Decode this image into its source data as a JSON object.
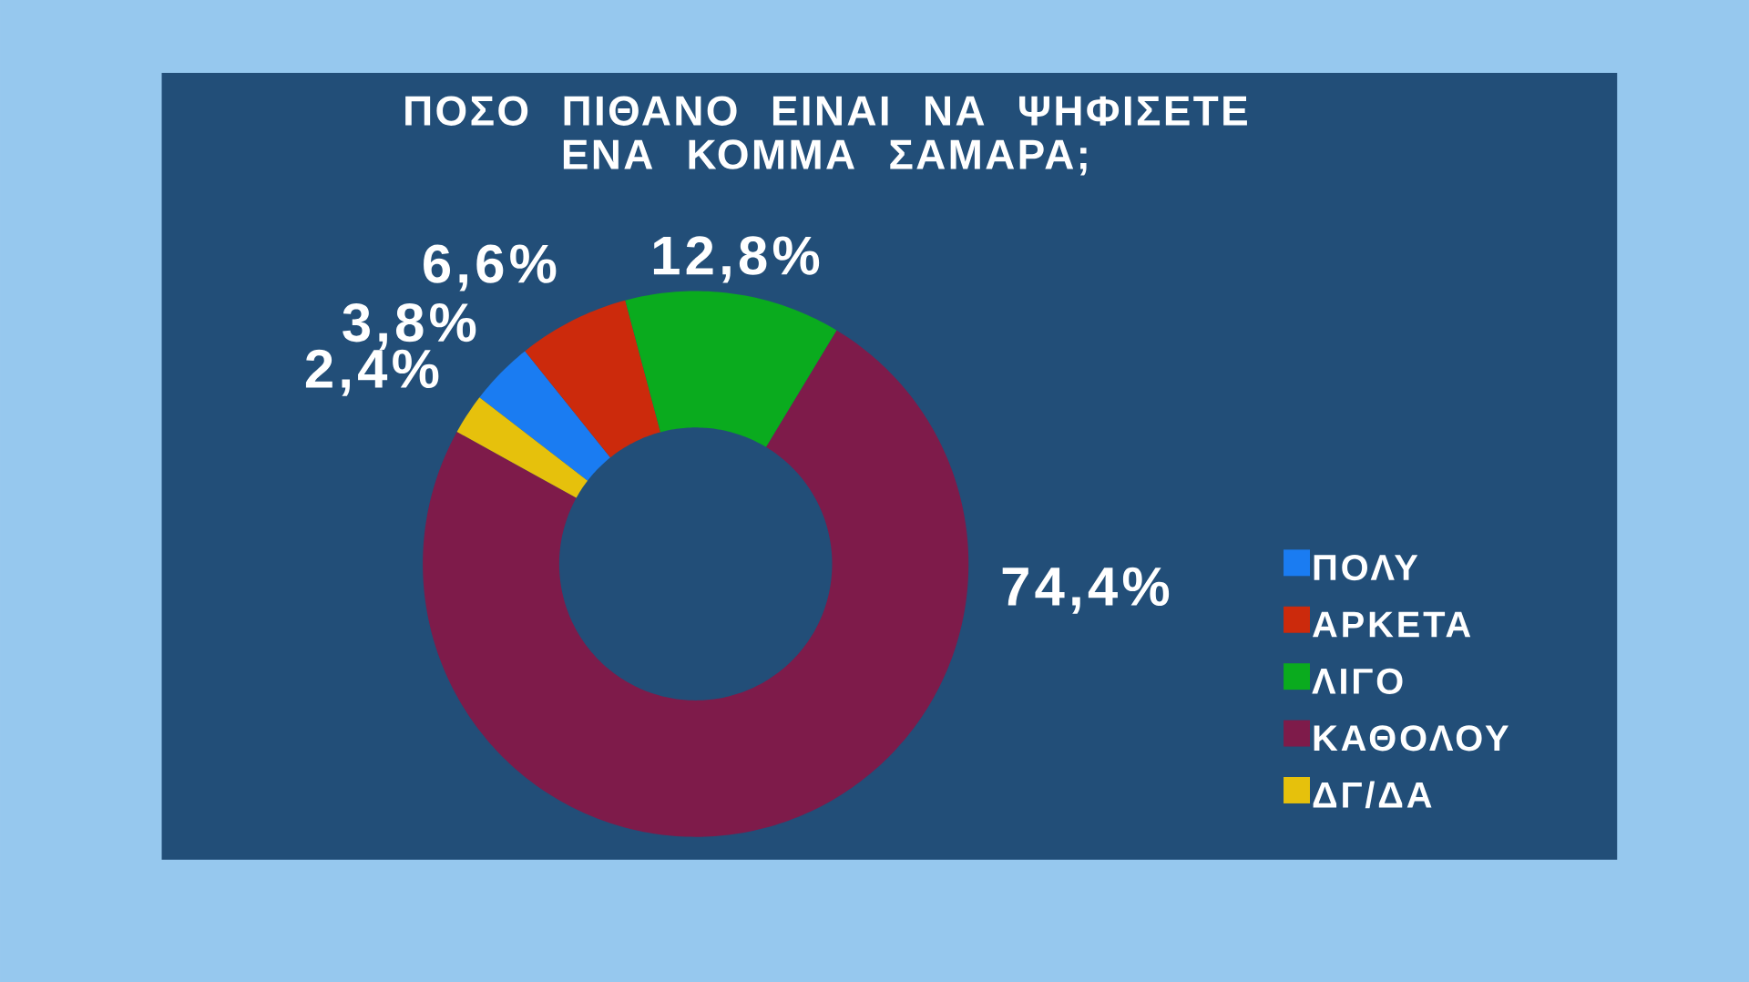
{
  "chart_data": {
    "type": "donut",
    "title": "ΠΟΣΟ ΠΙΘΑΝΟ ΕΙΝΑΙ ΝΑ ΨΗΦΙΣΕΤΕ ΕΝΑ ΚΟΜΜΑ ΣΑΜΑΡΑ;",
    "categories": [
      "ΠΟΛΥ",
      "ΑΡΚΕΤΑ",
      "ΛΙΓΟ",
      "ΚΑΘΟΛΟΥ",
      "ΔΓ/ΔΑ"
    ],
    "values": [
      3.8,
      6.6,
      12.8,
      74.4,
      2.4
    ],
    "value_labels": [
      "3,8%",
      "6,6%",
      "12,8%",
      "74,4%",
      "2,4%"
    ],
    "colors": [
      "#1a7cf2",
      "#cc2a0c",
      "#0aab1e",
      "#7e1b4a",
      "#e6c10c"
    ],
    "legend": "right"
  }
}
